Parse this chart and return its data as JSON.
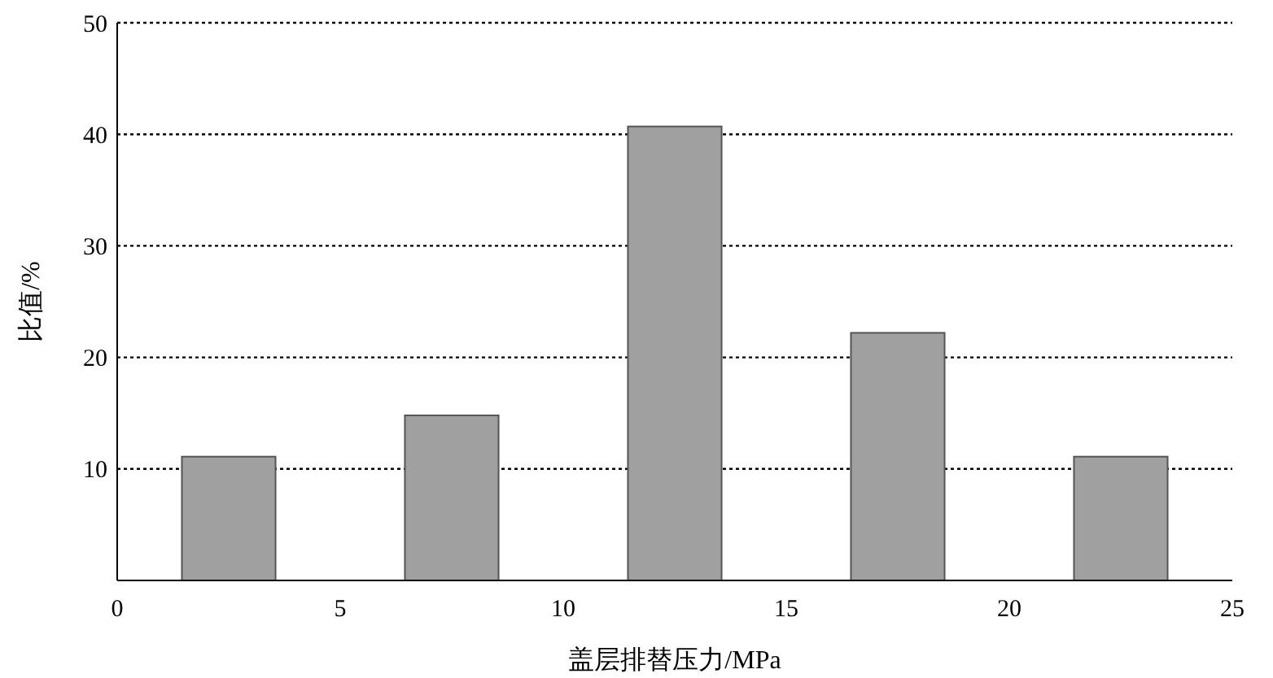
{
  "chart_data": {
    "type": "bar",
    "xlabel": "盖层排替压力/MPa",
    "ylabel": "比值/%",
    "x": [
      2.5,
      7.5,
      12.5,
      17.5,
      22.5
    ],
    "values": [
      11.1,
      14.8,
      40.7,
      22.2,
      11.1
    ],
    "color": "#a0a0a0",
    "xlim": [
      0,
      25
    ],
    "xticks": [
      0,
      5,
      10,
      15,
      20,
      25
    ],
    "ylim": [
      0,
      50
    ],
    "yticks": [
      10,
      20,
      30,
      40,
      50
    ],
    "grid": "y"
  }
}
